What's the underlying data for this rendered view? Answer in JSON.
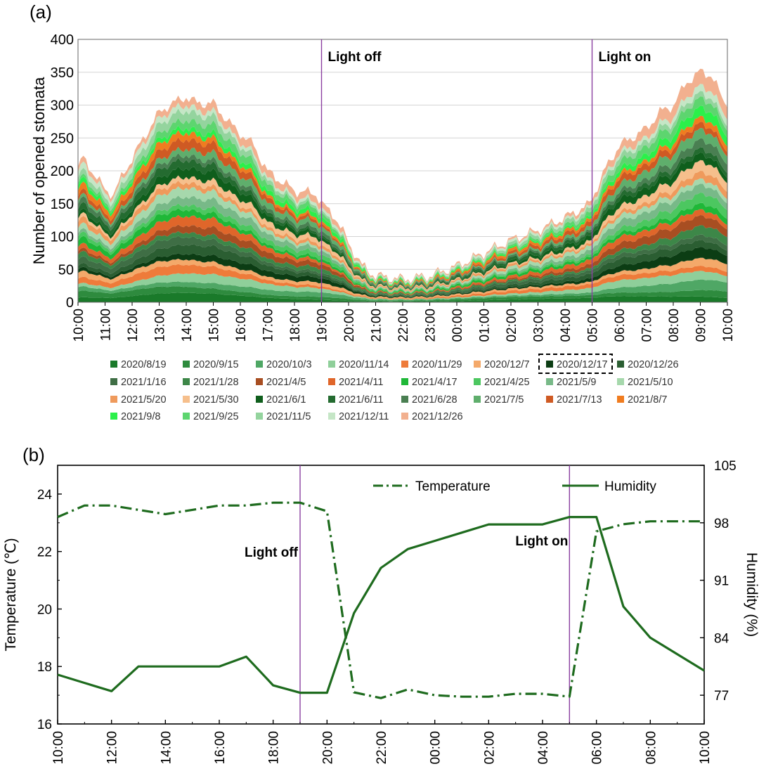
{
  "panel_a": {
    "label": "(a)",
    "chart_data": {
      "type": "area",
      "stacked": true,
      "title": "",
      "ylabel": "Number of opened stomata",
      "xlabel": "",
      "ylim": [
        0,
        400
      ],
      "yticks": [
        0,
        50,
        100,
        150,
        200,
        250,
        300,
        350,
        400
      ],
      "xlim": [
        0,
        24
      ],
      "xtick_labels": [
        "10:00",
        "11:00",
        "12:00",
        "13:00",
        "14:00",
        "15:00",
        "16:00",
        "17:00",
        "18:00",
        "19:00",
        "20:00",
        "21:00",
        "22:00",
        "23:00",
        "00:00",
        "01:00",
        "02:00",
        "03:00",
        "04:00",
        "05:00",
        "06:00",
        "07:00",
        "08:00",
        "09:00",
        "10:00"
      ],
      "total_profile": {
        "x": [
          0,
          0.15,
          0.6,
          1.0,
          1.3,
          2.0,
          2.7,
          3.0,
          3.3,
          4.0,
          4.4,
          5.0,
          5.7,
          6.5,
          7.0,
          8.0,
          8.8,
          9.0,
          9.5,
          10.0,
          10.5,
          11.0,
          12.0,
          13.0,
          14.0,
          15.0,
          16.0,
          17.0,
          18.0,
          18.9,
          19.0,
          19.5,
          20.0,
          21.0,
          21.5,
          22.0,
          22.5,
          23.0,
          23.4,
          23.8,
          24.0
        ],
        "y": [
          205,
          220,
          195,
          170,
          165,
          220,
          270,
          290,
          300,
          315,
          305,
          305,
          270,
          240,
          200,
          170,
          165,
          150,
          130,
          90,
          55,
          40,
          35,
          40,
          55,
          75,
          95,
          110,
          130,
          150,
          160,
          205,
          240,
          265,
          290,
          300,
          335,
          350,
          345,
          310,
          295
        ]
      },
      "series": [
        {
          "name": "2020/8/19",
          "color": "#1a7a2a",
          "share": 0.034
        },
        {
          "name": "2020/9/15",
          "color": "#2e8b3e",
          "share": 0.034
        },
        {
          "name": "2020/10/3",
          "color": "#4fa765",
          "share": 0.034
        },
        {
          "name": "2020/11/14",
          "color": "#8fcf9a",
          "share": 0.034
        },
        {
          "name": "2020/11/29",
          "color": "#ee7b3a",
          "share": 0.034
        },
        {
          "name": "2020/12/7",
          "color": "#f4a96a",
          "share": 0.034
        },
        {
          "name": "2020/12/17",
          "color": "#0c3d14",
          "share": 0.034
        },
        {
          "name": "2020/12/26",
          "color": "#2b5e32",
          "share": 0.034
        },
        {
          "name": "2021/1/16",
          "color": "#3f6e45",
          "share": 0.034
        },
        {
          "name": "2021/1/28",
          "color": "#3d8748",
          "share": 0.034
        },
        {
          "name": "2021/4/5",
          "color": "#a84e22",
          "share": 0.034
        },
        {
          "name": "2021/4/11",
          "color": "#e0662a",
          "share": 0.034
        },
        {
          "name": "2021/4/17",
          "color": "#1fb838",
          "share": 0.034
        },
        {
          "name": "2021/4/25",
          "color": "#4cc760",
          "share": 0.034
        },
        {
          "name": "2021/5/9",
          "color": "#78b988",
          "share": 0.034
        },
        {
          "name": "2021/5/10",
          "color": "#a6d8ac",
          "share": 0.034
        },
        {
          "name": "2021/5/20",
          "color": "#ef9a5c",
          "share": 0.034
        },
        {
          "name": "2021/5/30",
          "color": "#f6bf8c",
          "share": 0.034
        },
        {
          "name": "2021/6/1",
          "color": "#0f5e1c",
          "share": 0.034
        },
        {
          "name": "2021/6/11",
          "color": "#246b30",
          "share": 0.034
        },
        {
          "name": "2021/6/28",
          "color": "#4a7f52",
          "share": 0.034
        },
        {
          "name": "2021/7/5",
          "color": "#5fae6c",
          "share": 0.034
        },
        {
          "name": "2021/7/13",
          "color": "#cf5a23",
          "share": 0.034
        },
        {
          "name": "2021/8/7",
          "color": "#f07c1f",
          "share": 0.034
        },
        {
          "name": "2021/9/8",
          "color": "#2bf04a",
          "share": 0.034
        },
        {
          "name": "2021/9/25",
          "color": "#5dd56f",
          "share": 0.034
        },
        {
          "name": "2021/11/5",
          "color": "#94d49e",
          "share": 0.034
        },
        {
          "name": "2021/12/11",
          "color": "#c5e6c6",
          "share": 0.034
        },
        {
          "name": "2021/12/26",
          "color": "#f2b08f",
          "share": 0.048
        }
      ],
      "highlighted_legend_entry": "2020/12/17",
      "annotations": [
        {
          "text": "Light off",
          "x": 9
        },
        {
          "text": "Light on",
          "x": 19
        }
      ]
    }
  },
  "panel_b": {
    "label": "(b)",
    "chart_data": {
      "type": "line",
      "title": "",
      "ylabel_left": "Temperature (℃)",
      "ylabel_right": "Humidity (%)",
      "ylim_left": [
        16,
        25
      ],
      "yticks_left": [
        16,
        18,
        20,
        22,
        24
      ],
      "ylim_right": [
        73.5,
        105
      ],
      "yticks_right": [
        77,
        84,
        91,
        98,
        105
      ],
      "xlim": [
        0,
        24
      ],
      "xtick_positions": [
        0,
        2,
        4,
        6,
        8,
        10,
        12,
        14,
        16,
        18,
        20,
        22,
        24
      ],
      "xtick_labels": [
        "10:00",
        "12:00",
        "14:00",
        "16:00",
        "18:00",
        "20:00",
        "22:00",
        "00:00",
        "02:00",
        "04:00",
        "06:00",
        "08:00",
        "10:00"
      ],
      "series": [
        {
          "name": "Temperature",
          "axis": "left",
          "style": "dashdot",
          "color": "#1e6b1e",
          "x": [
            0,
            1,
            2,
            3,
            4,
            5,
            6,
            7,
            8,
            9,
            10,
            11,
            12,
            13,
            14,
            15,
            16,
            17,
            18,
            19,
            20,
            21,
            22,
            23,
            24
          ],
          "y": [
            23.2,
            23.6,
            23.6,
            23.45,
            23.3,
            23.45,
            23.6,
            23.6,
            23.7,
            23.7,
            23.4,
            17.1,
            16.9,
            17.2,
            17.0,
            16.95,
            16.95,
            17.05,
            17.05,
            16.95,
            22.7,
            22.95,
            23.05,
            23.05,
            23.05
          ]
        },
        {
          "name": "Humidity",
          "axis": "right",
          "style": "solid",
          "color": "#1e6b1e",
          "x": [
            0,
            1,
            2,
            3,
            4,
            5,
            6,
            7,
            8,
            9,
            10,
            11,
            12,
            13,
            14,
            15,
            16,
            17,
            18,
            19,
            20,
            21,
            22,
            23,
            24
          ],
          "y": [
            79.5,
            78.5,
            77.5,
            80.5,
            80.5,
            80.5,
            80.5,
            81.7,
            78.2,
            77.3,
            77.3,
            87.0,
            92.5,
            94.8,
            95.8,
            96.8,
            97.8,
            97.8,
            97.8,
            98.7,
            98.7,
            87.8,
            84.0,
            82.0,
            80.0
          ]
        }
      ],
      "annotations": [
        {
          "text": "Light off",
          "x": 9
        },
        {
          "text": "Light on",
          "x": 19
        }
      ],
      "legend": [
        "Temperature",
        "Humidity"
      ]
    }
  }
}
